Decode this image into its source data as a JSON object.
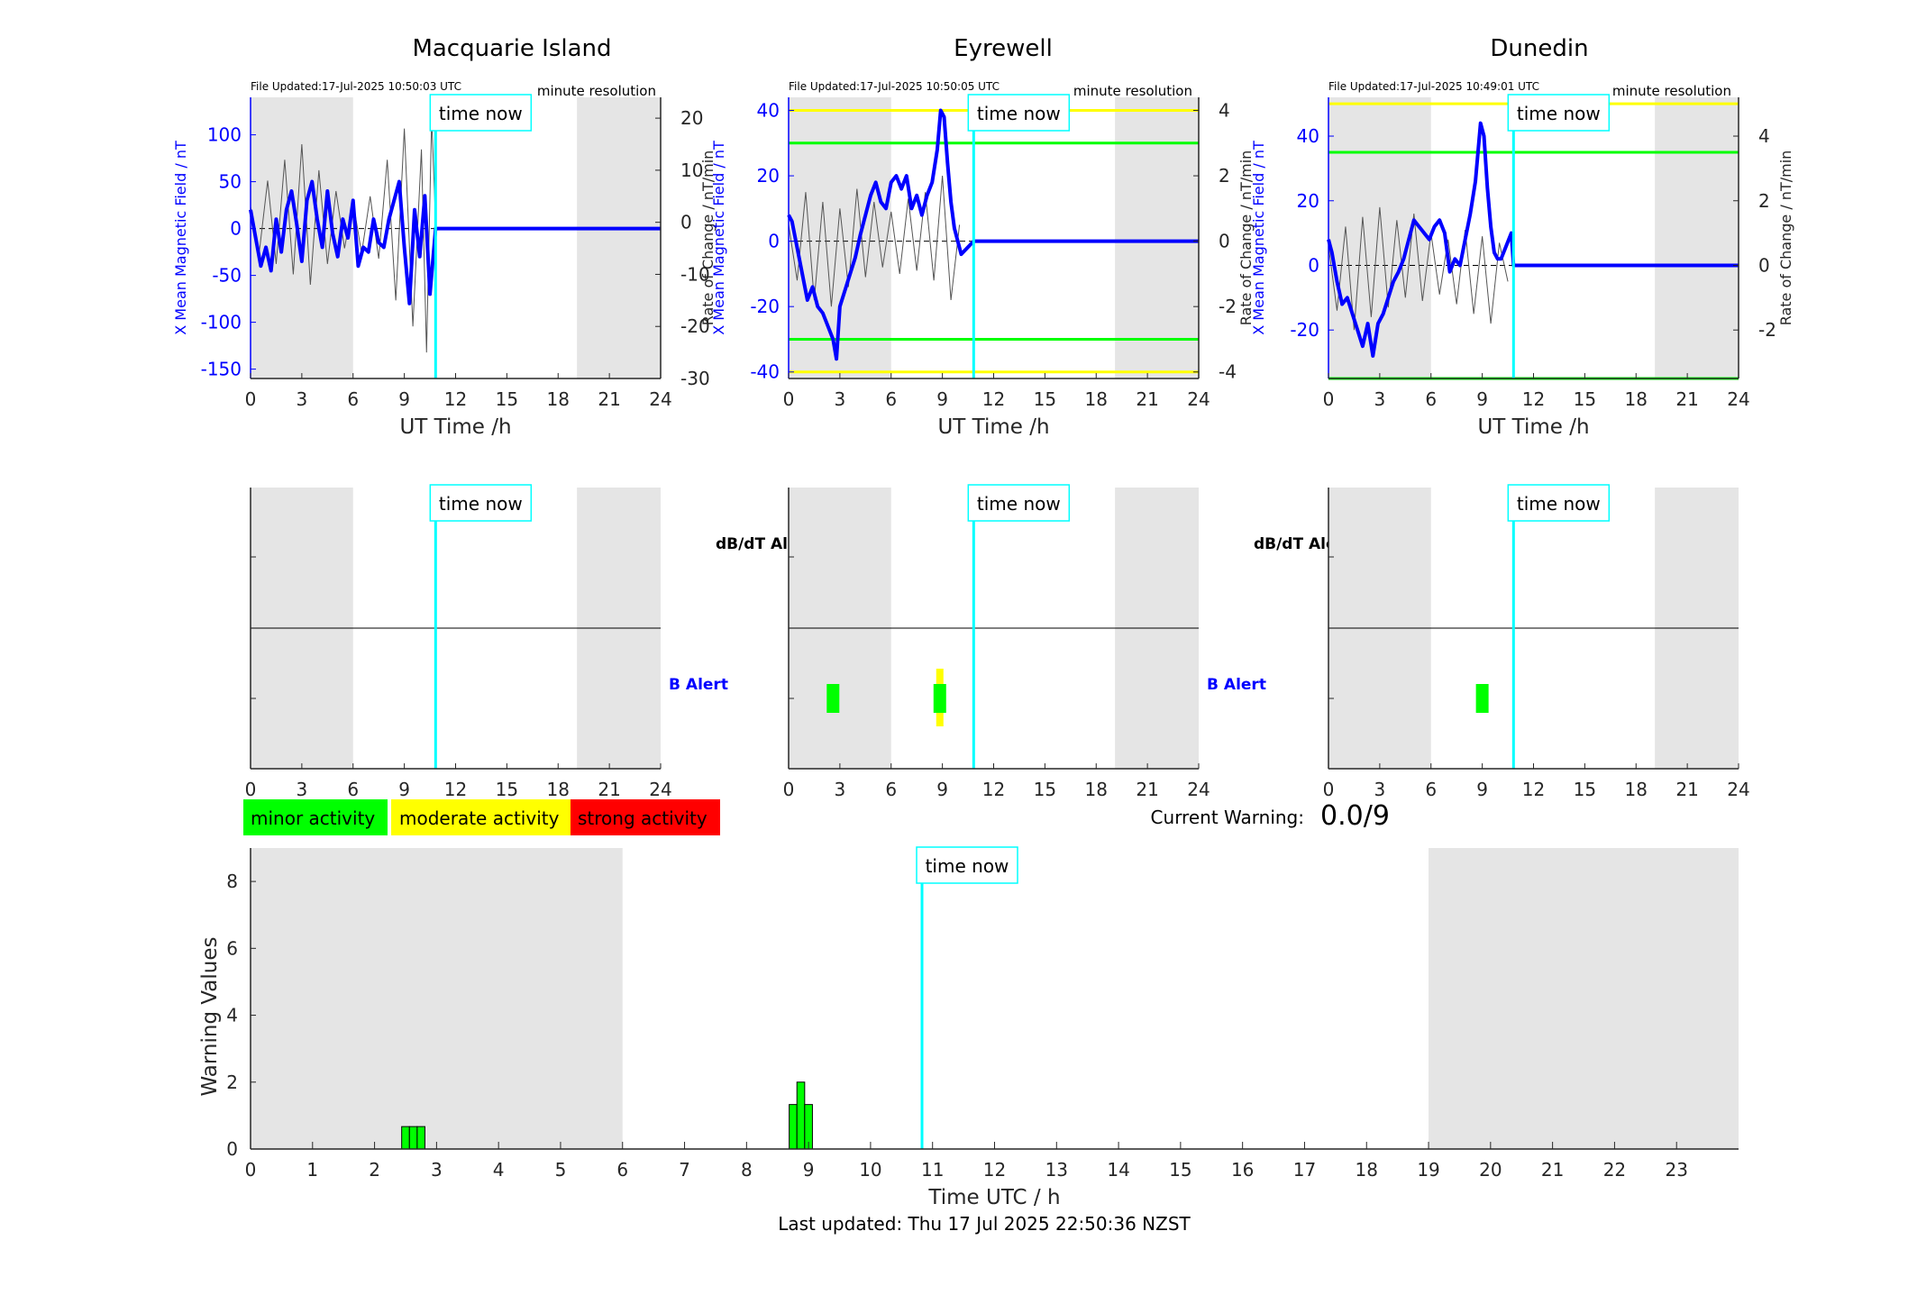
{
  "stations": [
    {
      "name": "Macquarie Island",
      "file_updated": "File Updated:17-Jul-2025 10:50:03 UTC",
      "resolution": "minute resolution",
      "ylabel_left": "X Mean Magnetic Field / nT",
      "ylabel_right": "Rate of Change / nT/min",
      "yticks_left": [
        "100",
        "50",
        "0",
        "-50",
        "-100",
        "-150"
      ],
      "yticks_right": [
        "20",
        "10",
        "0",
        "-10",
        "-20",
        "-30"
      ],
      "alert_labels": [
        "dB/dT Alert",
        "B Alert"
      ]
    },
    {
      "name": "Eyrewell",
      "file_updated": "File Updated:17-Jul-2025 10:50:05 UTC",
      "resolution": "minute resolution",
      "ylabel_left": "X Mean Magnetic Field / nT",
      "ylabel_right": "Rate of Change / nT/min",
      "yticks_left": [
        "40",
        "20",
        "0",
        "-20",
        "-40"
      ],
      "yticks_right": [
        "4",
        "2",
        "0",
        "-2",
        "-4"
      ],
      "alert_labels": [
        "dB/dT Alert",
        "B Alert"
      ]
    },
    {
      "name": "Dunedin",
      "file_updated": "File Updated:17-Jul-2025 10:49:01 UTC",
      "resolution": "minute resolution",
      "ylabel_left": "X Mean Magnetic Field / nT",
      "ylabel_right": "Rate of Change / nT/min",
      "yticks_left": [
        "40",
        "20",
        "0",
        "-20"
      ],
      "yticks_right": [
        "4",
        "2",
        "0",
        "-2"
      ],
      "alert_labels": []
    }
  ],
  "x_axis": {
    "label": "UT Time /h",
    "ticks": [
      "0",
      "3",
      "6",
      "9",
      "12",
      "15",
      "18",
      "21",
      "24"
    ]
  },
  "time_now_label": "time now",
  "time_now_hour": 10.83,
  "legend": [
    {
      "label": "minor activity",
      "color": "#00ff00"
    },
    {
      "label": "moderate activity",
      "color": "#ffff00"
    },
    {
      "label": "strong activity",
      "color": "#ff0000"
    }
  ],
  "current_warning": {
    "label": "Current Warning:",
    "value": "0.0/9"
  },
  "warning_chart": {
    "ylabel": "Warning Values",
    "xlabel": "Time UTC / h",
    "yticks": [
      "0",
      "2",
      "4",
      "6",
      "8"
    ],
    "xticks": [
      "0",
      "1",
      "2",
      "3",
      "4",
      "5",
      "6",
      "7",
      "8",
      "9",
      "10",
      "11",
      "12",
      "13",
      "14",
      "15",
      "16",
      "17",
      "18",
      "19",
      "20",
      "21",
      "22",
      "23"
    ]
  },
  "last_updated": "Last updated: Thu 17 Jul 2025 22:50:36 NZST",
  "colors": {
    "field_line": "#0000ff",
    "rate_line": "#555555",
    "time_now": "#00ffff",
    "night_shade": "#e5e5e5",
    "threshold_green": "#00ff00",
    "threshold_yellow": "#ffff00",
    "axis_blue": "#0000ff"
  },
  "chart_data": [
    {
      "type": "line",
      "title": "Macquarie Island",
      "xlabel": "UT Time /h",
      "ylabel": "X Mean Magnetic Field / nT",
      "y2label": "Rate of Change / nT/min",
      "xlim": [
        0,
        24
      ],
      "ylim": [
        -160,
        140
      ],
      "y2lim": [
        -30,
        24
      ],
      "night_bands": [
        [
          0,
          6
        ],
        [
          19.1,
          24
        ]
      ],
      "series": [
        {
          "x": [
            0,
            0.3,
            0.6,
            0.9,
            1.2,
            1.5,
            1.8,
            2.1,
            2.4,
            2.7,
            3.0,
            3.3,
            3.6,
            3.9,
            4.2,
            4.5,
            4.8,
            5.1,
            5.4,
            5.7,
            6.0,
            6.3,
            6.6,
            6.9,
            7.2,
            7.5,
            7.8,
            8.1,
            8.4,
            8.7,
            9.0,
            9.3,
            9.6,
            9.9,
            10.2,
            10.5,
            10.83,
            24
          ],
          "y": [
            20,
            -10,
            -40,
            -20,
            -45,
            10,
            -25,
            20,
            40,
            5,
            -35,
            30,
            50,
            10,
            -20,
            40,
            -5,
            -30,
            10,
            -10,
            30,
            -40,
            -20,
            -25,
            10,
            -15,
            -20,
            10,
            30,
            50,
            -20,
            -80,
            20,
            -30,
            35,
            -70,
            0,
            0
          ]
        }
      ],
      "rate_series": [
        {
          "x": [
            0,
            0.5,
            1,
            1.5,
            2,
            2.5,
            3,
            3.5,
            4,
            4.5,
            5,
            5.5,
            6,
            6.5,
            7,
            7.5,
            8,
            8.5,
            9,
            9.5,
            10,
            10.3,
            10.6,
            10.83
          ],
          "y": [
            3,
            -6,
            8,
            -8,
            12,
            -10,
            15,
            -12,
            10,
            -8,
            6,
            -5,
            4,
            -6,
            5,
            -7,
            12,
            -15,
            18,
            -20,
            14,
            -25,
            20,
            0
          ]
        }
      ]
    },
    {
      "type": "line",
      "title": "Eyrewell",
      "xlabel": "UT Time /h",
      "ylabel": "X Mean Magnetic Field / nT",
      "y2label": "Rate of Change / nT/min",
      "xlim": [
        0,
        24
      ],
      "ylim": [
        -42,
        44
      ],
      "y2lim": [
        -4.2,
        4.4
      ],
      "night_bands": [
        [
          0,
          6
        ],
        [
          19.1,
          24
        ]
      ],
      "thresholds": {
        "yellow": [
          40,
          -40
        ],
        "green": [
          30,
          -30
        ]
      },
      "series": [
        {
          "x": [
            0,
            0.2,
            0.5,
            0.8,
            1.1,
            1.4,
            1.7,
            2.0,
            2.3,
            2.6,
            2.8,
            3.0,
            3.3,
            3.6,
            3.9,
            4.2,
            4.5,
            4.8,
            5.1,
            5.4,
            5.7,
            6.0,
            6.3,
            6.6,
            6.9,
            7.2,
            7.5,
            7.8,
            8.1,
            8.4,
            8.7,
            8.9,
            9.1,
            9.3,
            9.5,
            9.7,
            9.9,
            10.1,
            10.83,
            24
          ],
          "y": [
            8,
            6,
            -2,
            -10,
            -18,
            -14,
            -20,
            -22,
            -26,
            -30,
            -36,
            -20,
            -15,
            -10,
            -5,
            2,
            8,
            14,
            18,
            12,
            10,
            18,
            20,
            16,
            20,
            10,
            14,
            8,
            14,
            18,
            28,
            40,
            38,
            24,
            12,
            4,
            0,
            -4,
            0,
            0
          ]
        }
      ],
      "rate_series": [
        {
          "x": [
            0,
            0.5,
            1,
            1.5,
            2,
            2.5,
            3,
            3.5,
            4,
            4.5,
            5,
            5.5,
            6,
            6.5,
            7,
            7.5,
            8,
            8.5,
            9,
            9.5,
            10
          ],
          "y": [
            0.5,
            -1.2,
            1.5,
            -1.8,
            1.2,
            -2.0,
            1.0,
            -1.4,
            1.6,
            -1.1,
            1.2,
            -0.8,
            0.9,
            -1.0,
            1.3,
            -0.9,
            1.5,
            -1.2,
            2.0,
            -1.8,
            0.5
          ]
        }
      ]
    },
    {
      "type": "line",
      "title": "Dunedin",
      "xlabel": "UT Time /h",
      "ylabel": "X Mean Magnetic Field / nT",
      "y2label": "Rate of Change / nT/min",
      "xlim": [
        0,
        24
      ],
      "ylim": [
        -35,
        52
      ],
      "y2lim": [
        -3.5,
        5.2
      ],
      "night_bands": [
        [
          0,
          6
        ],
        [
          19.1,
          24
        ]
      ],
      "thresholds": {
        "yellow": [
          50
        ],
        "green": [
          35,
          -35
        ]
      },
      "series": [
        {
          "x": [
            0,
            0.2,
            0.5,
            0.8,
            1.1,
            1.4,
            1.7,
            2.0,
            2.3,
            2.6,
            2.9,
            3.2,
            3.5,
            3.8,
            4.1,
            4.4,
            4.7,
            5.0,
            5.3,
            5.6,
            5.9,
            6.2,
            6.5,
            6.8,
            7.1,
            7.4,
            7.7,
            8.0,
            8.3,
            8.6,
            8.9,
            9.1,
            9.3,
            9.5,
            9.7,
            9.9,
            10.1,
            10.4,
            10.7,
            10.83,
            24
          ],
          "y": [
            8,
            4,
            -5,
            -12,
            -10,
            -15,
            -20,
            -25,
            -18,
            -28,
            -18,
            -15,
            -10,
            -5,
            -2,
            2,
            8,
            14,
            12,
            10,
            8,
            12,
            14,
            10,
            -2,
            2,
            0,
            8,
            16,
            26,
            44,
            40,
            24,
            12,
            4,
            2,
            2,
            6,
            10,
            0,
            0
          ]
        }
      ],
      "rate_series": [
        {
          "x": [
            0,
            0.5,
            1,
            1.5,
            2,
            2.5,
            3,
            3.5,
            4,
            4.5,
            5,
            5.5,
            6,
            6.5,
            7,
            7.5,
            8,
            8.5,
            9,
            9.5,
            10,
            10.5
          ],
          "y": [
            0.6,
            -1.4,
            1.2,
            -2.0,
            1.5,
            -1.6,
            1.8,
            -1.3,
            1.4,
            -1.0,
            1.6,
            -1.1,
            1.0,
            -0.9,
            0.8,
            -1.2,
            1.1,
            -1.5,
            0.9,
            -1.8,
            0.7,
            -0.5
          ]
        }
      ]
    },
    {
      "type": "bar",
      "title": "",
      "xlabel": "Time UTC / h",
      "ylabel": "Warning Values",
      "xlim": [
        0,
        24
      ],
      "ylim": [
        0,
        9
      ],
      "night_bands": [
        [
          0,
          6
        ],
        [
          19,
          24
        ]
      ],
      "bars": [
        {
          "x": 2.5,
          "value": 0.67,
          "level": "minor"
        },
        {
          "x": 2.625,
          "value": 0.67,
          "level": "minor"
        },
        {
          "x": 2.75,
          "value": 0.67,
          "level": "minor"
        },
        {
          "x": 8.75,
          "value": 1.33,
          "level": "minor"
        },
        {
          "x": 8.875,
          "value": 2.0,
          "level": "minor"
        },
        {
          "x": 9.0,
          "value": 1.33,
          "level": "minor"
        }
      ]
    }
  ],
  "alert_data": [
    {
      "station": "Macquarie Island",
      "b_alerts": [],
      "db_alerts": []
    },
    {
      "station": "Eyrewell",
      "b_alerts": [
        {
          "x": 2.6,
          "level": "minor"
        },
        {
          "x": 8.85,
          "level": "minor"
        }
      ],
      "db_alerts": [],
      "b_yellow": [
        {
          "x": 8.85
        }
      ]
    },
    {
      "station": "Dunedin",
      "b_alerts": [
        {
          "x": 9.0,
          "level": "minor"
        }
      ],
      "db_alerts": []
    }
  ]
}
